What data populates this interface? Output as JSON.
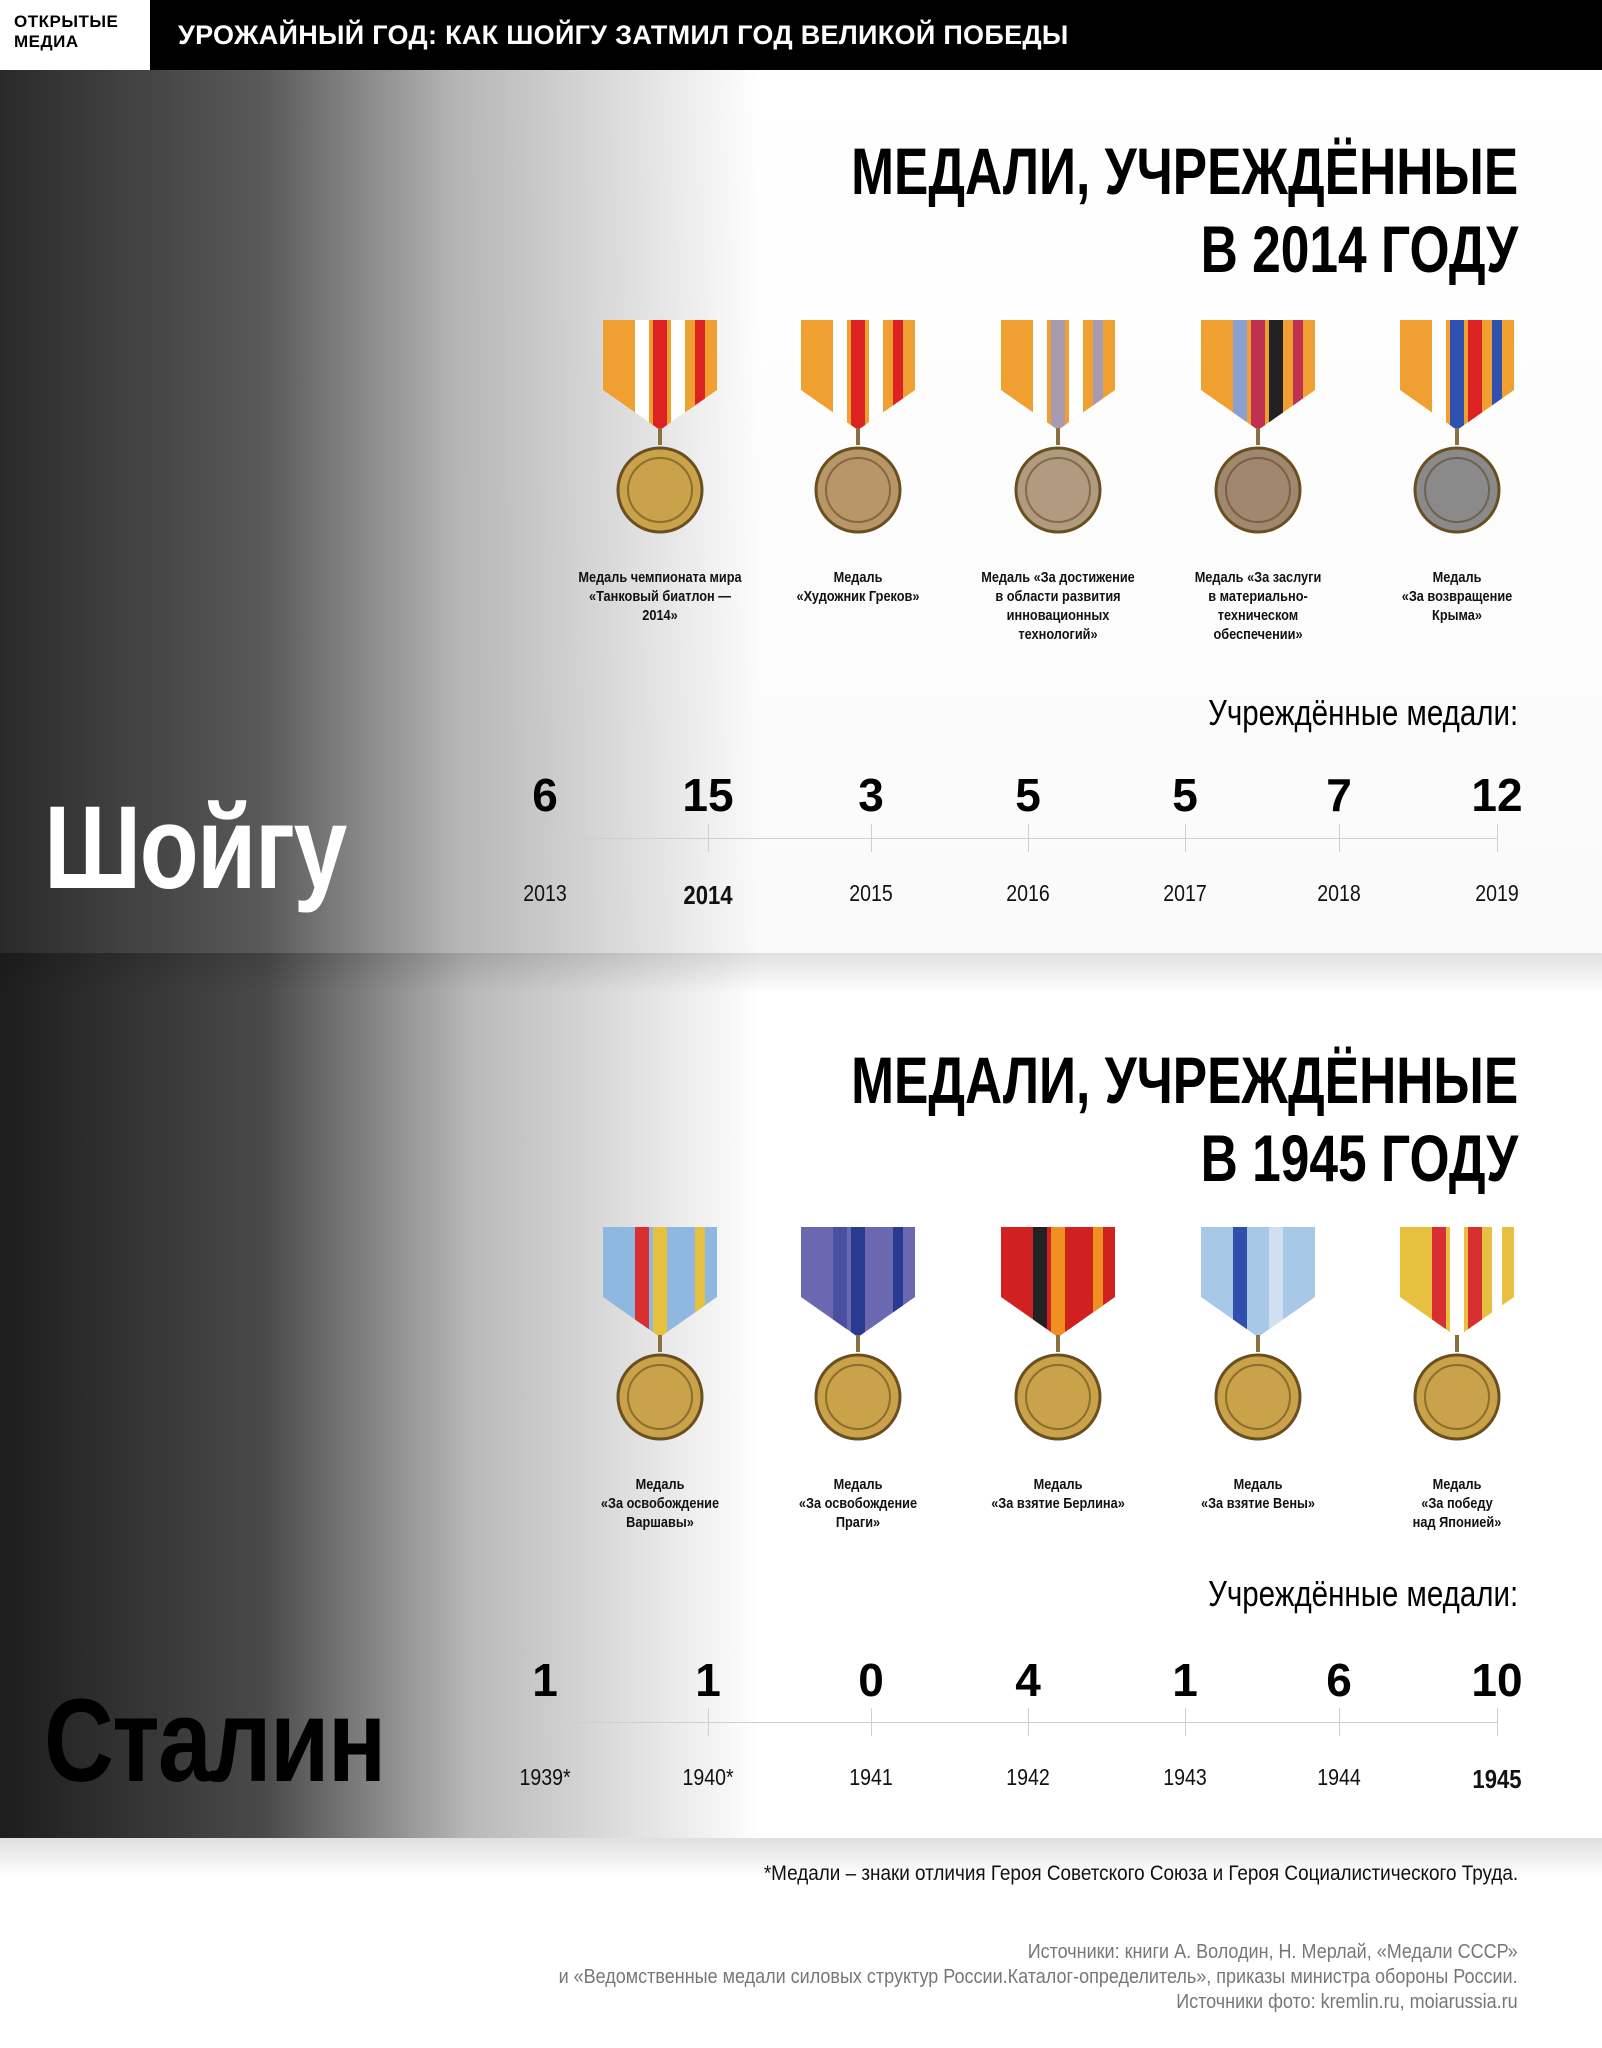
{
  "header": {
    "logo": [
      "ОТКРЫТЫЕ",
      "МЕДИА"
    ],
    "headline": "УРОЖАЙНЫЙ ГОД: КАК ШОЙГУ ЗАТМИЛ ГОД ВЕЛИКОЙ ПОБЕДЫ"
  },
  "sections": [
    {
      "name": "Шойгу",
      "title": [
        "МЕДАЛИ, УЧРЕЖДЁННЫЕ",
        "В 2014 ГОДУ"
      ],
      "medals": [
        {
          "caption": [
            "Медаль чемпионата мира",
            "«Танковый биатлон —2014»"
          ],
          "ribbon": [
            "#f0a030",
            "#ffffff",
            "#d22",
            "#ffffff"
          ],
          "metal": "#c9a24a"
        },
        {
          "caption": [
            "Медаль",
            "«Художник Греков»"
          ],
          "ribbon": [
            "#f0a030",
            "#ffffff",
            "#d22",
            "#ffffff"
          ],
          "metal": "#b8966a"
        },
        {
          "caption": [
            "Медаль «За достижение",
            "в области развития",
            "инновационных",
            "технологий»"
          ],
          "ribbon": [
            "#f0a030",
            "#ffffff",
            "#a89ab0",
            "#ffffff"
          ],
          "metal": "#b09a80"
        },
        {
          "caption": [
            "Медаль «За заслуги",
            "в материально-техническом",
            "обеспечении»"
          ],
          "ribbon": [
            "#f0a030",
            "#8aa0d0",
            "#c03050",
            "#222"
          ],
          "metal": "#a08870"
        },
        {
          "caption": [
            "Медаль",
            "«За возвращение",
            "Крыма»"
          ],
          "ribbon": [
            "#f0a030",
            "#ffffff",
            "#3050b0",
            "#d22"
          ],
          "metal": "#8a8a8a"
        }
      ],
      "subtitle": "Учреждённые медали:",
      "timeline": [
        {
          "year": "2013",
          "count": "6"
        },
        {
          "year": "2014",
          "count": "15",
          "highlight": true
        },
        {
          "year": "2015",
          "count": "3"
        },
        {
          "year": "2016",
          "count": "5"
        },
        {
          "year": "2017",
          "count": "5"
        },
        {
          "year": "2018",
          "count": "7"
        },
        {
          "year": "2019",
          "count": "12"
        }
      ]
    },
    {
      "name": "Сталин",
      "title": [
        "МЕДАЛИ, УЧРЕЖДЁННЫЕ",
        "В 1945 ГОДУ"
      ],
      "medals": [
        {
          "caption": [
            "Медаль",
            "«За освобождение",
            "Варшавы»"
          ],
          "ribbon": [
            "#8fb8e0",
            "#d83030",
            "#e8c040",
            "#8fb8e0"
          ],
          "metal": "#c9a24a"
        },
        {
          "caption": [
            "Медаль",
            "«За освобождение",
            "Праги»"
          ],
          "ribbon": [
            "#6a68b0",
            "#4a50a0",
            "#2a3a90",
            "#6a68b0"
          ],
          "metal": "#c9a24a"
        },
        {
          "caption": [
            "Медаль",
            "«За взятие Берлина»"
          ],
          "ribbon": [
            "#d02020",
            "#222",
            "#f09020",
            "#d02020"
          ],
          "metal": "#c9a24a"
        },
        {
          "caption": [
            "Медаль",
            "«За взятие Вены»"
          ],
          "ribbon": [
            "#a8c8e8",
            "#3050b0",
            "#a8c8e8",
            "#d0e0f0"
          ],
          "metal": "#c9a24a"
        },
        {
          "caption": [
            "Медаль",
            "«За победу",
            "над Японией»"
          ],
          "ribbon": [
            "#e8c040",
            "#d83030",
            "#ffffff",
            "#d83030"
          ],
          "metal": "#c9a24a"
        }
      ],
      "subtitle": "Учреждённые медали:",
      "timeline": [
        {
          "year": "1939*",
          "count": "1"
        },
        {
          "year": "1940*",
          "count": "1"
        },
        {
          "year": "1941",
          "count": "0"
        },
        {
          "year": "1942",
          "count": "4"
        },
        {
          "year": "1943",
          "count": "1"
        },
        {
          "year": "1944",
          "count": "6"
        },
        {
          "year": "1945",
          "count": "10",
          "highlight": true
        }
      ]
    }
  ],
  "footnote": "*Медали – знаки отличия Героя Советского Союза и Героя Социалистического Труда.",
  "sources": [
    "Источники: книги А. Володин, Н. Мерлай, «Медали СССР»",
    "и «Ведомственные медали силовых структур России.Каталог-определитель», приказы министра обороны России.",
    "Источники фото: kremlin.ru, moiarussia.ru"
  ]
}
